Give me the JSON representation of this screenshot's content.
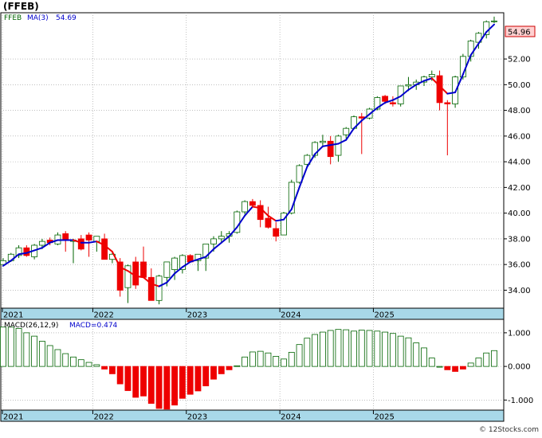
{
  "title": "(FFEB)",
  "footer": "© 12Stocks.com",
  "price_panel": {
    "ticker": "FFEB",
    "ma_label": "MA(3)",
    "ma_value": "54.69",
    "last_price": "54.96",
    "y_ticks": [
      "34.00",
      "36.00",
      "38.00",
      "40.00",
      "42.00",
      "44.00",
      "46.00",
      "48.00",
      "50.00",
      "52.00"
    ],
    "x_ticks": [
      "2021",
      "2022",
      "2023",
      "2024",
      "2025"
    ]
  },
  "macd_panel": {
    "label": "MACD(26,12,9)",
    "value_label": "MACD=0.474",
    "y_ticks": [
      "1.000",
      "0.000",
      "-1.000"
    ],
    "x_ticks": [
      "2021",
      "2022",
      "2023",
      "2024",
      "2025"
    ]
  },
  "colors": {
    "up": "#006400",
    "down": "#ee0000",
    "ma_up": "#0000cc",
    "ma_down": "#ee0000",
    "axis_band": "#a8d8e8",
    "grid": "#999999",
    "price_box": "#ffd0d0"
  },
  "chart_data": [
    {
      "type": "candlestick",
      "interval": "monthly",
      "title": "(FFEB)",
      "ylim": [
        32.6,
        55.6
      ],
      "x_ticks": [
        "2021",
        "2022",
        "2023",
        "2024",
        "2025"
      ],
      "series": [
        {
          "name": "FFEB",
          "ohlc": [
            [
              36.0,
              36.5,
              35.9,
              36.3
            ],
            [
              36.3,
              36.9,
              36.2,
              36.8
            ],
            [
              36.7,
              37.5,
              36.5,
              37.3
            ],
            [
              37.3,
              37.5,
              36.6,
              36.7
            ],
            [
              36.6,
              37.6,
              36.4,
              37.5
            ],
            [
              37.5,
              38.0,
              37.2,
              37.8
            ],
            [
              37.9,
              38.1,
              37.5,
              37.7
            ],
            [
              37.6,
              38.5,
              37.5,
              38.3
            ],
            [
              38.4,
              38.6,
              37.0,
              37.9
            ],
            [
              37.8,
              38.0,
              36.1,
              37.9
            ],
            [
              38.0,
              38.3,
              37.1,
              37.2
            ],
            [
              38.3,
              38.5,
              36.6,
              37.9
            ],
            [
              37.8,
              38.2,
              37.0,
              38.2
            ],
            [
              38.0,
              38.4,
              36.4,
              36.4
            ],
            [
              36.4,
              36.9,
              36.1,
              36.8
            ],
            [
              36.2,
              36.5,
              33.5,
              34.0
            ],
            [
              34.2,
              36.0,
              33.0,
              35.9
            ],
            [
              36.2,
              36.6,
              34.1,
              34.4
            ],
            [
              36.2,
              37.4,
              35.1,
              35.0
            ],
            [
              35.0,
              35.7,
              33.2,
              33.2
            ],
            [
              33.2,
              35.2,
              32.9,
              35.1
            ],
            [
              35.0,
              36.2,
              34.3,
              36.2
            ],
            [
              35.6,
              36.6,
              34.8,
              36.5
            ],
            [
              35.6,
              36.8,
              35.3,
              36.7
            ],
            [
              36.7,
              36.8,
              36.3,
              36.2
            ],
            [
              36.3,
              36.8,
              35.5,
              36.8
            ],
            [
              36.5,
              37.6,
              35.5,
              37.6
            ],
            [
              37.6,
              38.2,
              37.0,
              38.0
            ],
            [
              38.0,
              38.6,
              37.7,
              38.2
            ],
            [
              38.2,
              38.6,
              37.7,
              38.4
            ],
            [
              38.5,
              40.2,
              38.4,
              40.1
            ],
            [
              40.1,
              41.0,
              39.9,
              40.9
            ],
            [
              40.9,
              41.1,
              40.5,
              40.6
            ],
            [
              40.6,
              41.0,
              38.9,
              39.5
            ],
            [
              39.6,
              40.5,
              38.8,
              38.9
            ],
            [
              38.8,
              39.3,
              37.8,
              38.2
            ],
            [
              38.3,
              40.1,
              38.3,
              40.0
            ],
            [
              40.0,
              42.6,
              39.9,
              42.4
            ],
            [
              42.4,
              43.8,
              42.3,
              43.7
            ],
            [
              43.8,
              44.6,
              43.6,
              44.5
            ],
            [
              44.5,
              45.6,
              44.3,
              45.5
            ],
            [
              45.5,
              46.1,
              45.2,
              45.6
            ],
            [
              45.6,
              46.0,
              43.8,
              44.4
            ],
            [
              44.5,
              46.1,
              44.0,
              46.0
            ],
            [
              46.1,
              46.7,
              45.8,
              46.6
            ],
            [
              46.6,
              47.6,
              46.5,
              47.5
            ],
            [
              47.5,
              47.8,
              44.6,
              47.4
            ],
            [
              47.4,
              48.2,
              47.3,
              48.1
            ],
            [
              48.1,
              49.1,
              48.0,
              49.0
            ],
            [
              49.1,
              49.2,
              48.5,
              48.7
            ],
            [
              48.6,
              49.1,
              48.3,
              48.5
            ],
            [
              48.5,
              49.9,
              48.3,
              49.9
            ],
            [
              49.9,
              50.6,
              49.5,
              50.0
            ],
            [
              50.0,
              50.4,
              49.6,
              50.2
            ],
            [
              50.2,
              50.7,
              49.9,
              50.6
            ],
            [
              50.6,
              51.1,
              50.3,
              50.8
            ],
            [
              50.7,
              51.1,
              48.0,
              48.6
            ],
            [
              48.6,
              48.8,
              44.5,
              48.5
            ],
            [
              48.5,
              50.7,
              48.2,
              50.6
            ],
            [
              50.6,
              52.4,
              50.4,
              52.2
            ],
            [
              52.2,
              53.5,
              51.8,
              53.4
            ],
            [
              53.3,
              54.1,
              52.8,
              54.0
            ],
            [
              53.9,
              55.0,
              53.6,
              54.9
            ],
            [
              54.9,
              55.3,
              54.8,
              54.96
            ]
          ]
        },
        {
          "name": "MA(3)",
          "values": [
            35.9,
            36.3,
            36.8,
            36.9,
            37.1,
            37.3,
            37.7,
            37.9,
            37.9,
            37.9,
            37.7,
            37.7,
            37.8,
            37.5,
            37.0,
            35.8,
            35.5,
            35.1,
            35.0,
            34.5,
            34.3,
            34.6,
            35.3,
            35.8,
            36.2,
            36.4,
            36.6,
            37.2,
            37.7,
            38.2,
            38.9,
            39.8,
            40.5,
            40.4,
            39.8,
            39.4,
            39.5,
            40.3,
            42.0,
            43.6,
            44.6,
            45.2,
            45.3,
            45.4,
            45.7,
            46.6,
            47.2,
            47.7,
            48.2,
            48.6,
            48.8,
            49.1,
            49.6,
            50.0,
            50.3,
            50.5,
            49.9,
            49.3,
            49.4,
            50.8,
            52.3,
            53.2,
            54.1,
            54.69
          ]
        }
      ]
    },
    {
      "type": "bar",
      "title": "MACD(26,12,9)",
      "ylim": [
        -1.3,
        1.4
      ],
      "y_ticks": [
        "1.000",
        "0.000",
        "-1.000"
      ],
      "series": [
        {
          "name": "MACD",
          "values": [
            1.17,
            1.17,
            1.13,
            1.0,
            0.9,
            0.75,
            0.62,
            0.5,
            0.38,
            0.28,
            0.2,
            0.12,
            0.05,
            -0.08,
            -0.22,
            -0.52,
            -0.72,
            -0.92,
            -0.88,
            -1.1,
            -1.25,
            -1.27,
            -1.15,
            -0.95,
            -0.83,
            -0.73,
            -0.58,
            -0.38,
            -0.22,
            -0.1,
            0.02,
            0.28,
            0.43,
            0.45,
            0.4,
            0.3,
            0.22,
            0.42,
            0.65,
            0.84,
            0.95,
            1.02,
            1.07,
            1.1,
            1.09,
            1.05,
            1.08,
            1.07,
            1.05,
            1.02,
            0.98,
            0.9,
            0.85,
            0.7,
            0.55,
            0.25,
            0.0,
            -0.1,
            -0.15,
            -0.08,
            0.1,
            0.25,
            0.4,
            0.47
          ]
        }
      ]
    }
  ]
}
